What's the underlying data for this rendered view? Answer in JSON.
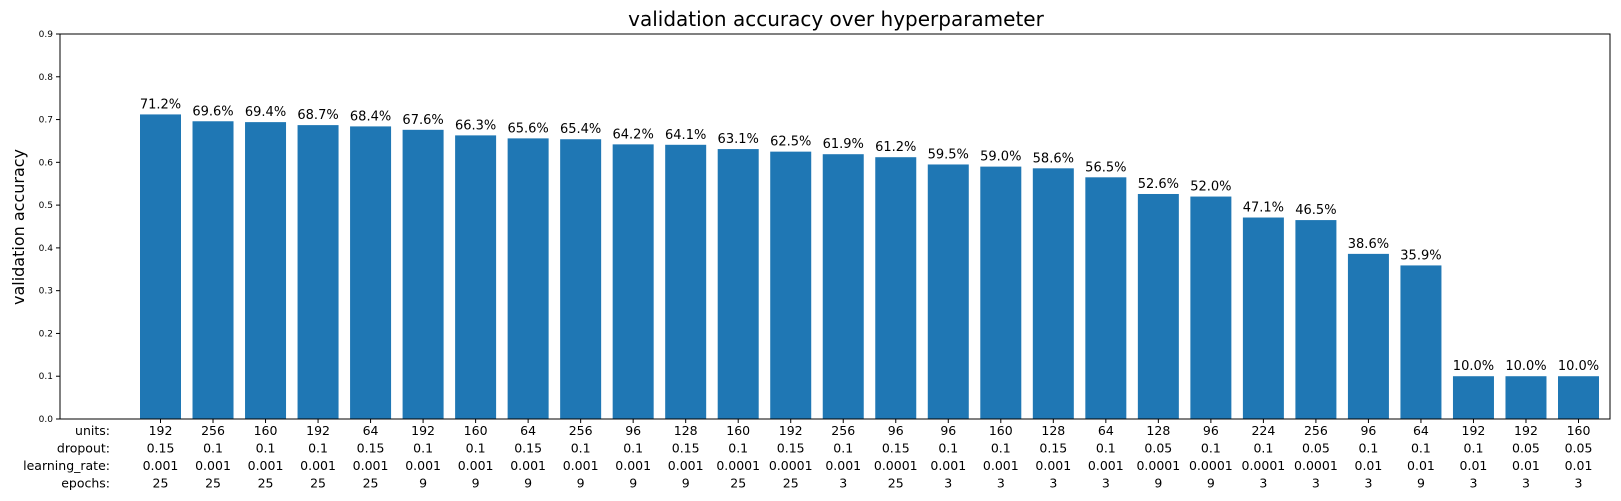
{
  "chart_data": {
    "type": "bar",
    "title": "validation accuracy over hyperparameter",
    "xlabel": "",
    "ylabel": "validation accuracy",
    "ylim": [
      0,
      0.9
    ],
    "yticks": [
      "0.0",
      "0.1",
      "0.2",
      "0.3",
      "0.4",
      "0.5",
      "0.6",
      "0.7",
      "0.8",
      "0.9"
    ],
    "grid": false,
    "bar_color": "#1f77b4",
    "row_headers": [
      "units:",
      "dropout:",
      "learning_rate:",
      "epochs:"
    ],
    "categories": [
      [
        "192",
        "0.15",
        "0.001",
        "25"
      ],
      [
        "256",
        "0.1",
        "0.001",
        "25"
      ],
      [
        "160",
        "0.1",
        "0.001",
        "25"
      ],
      [
        "192",
        "0.1",
        "0.001",
        "25"
      ],
      [
        "64",
        "0.15",
        "0.001",
        "25"
      ],
      [
        "192",
        "0.1",
        "0.001",
        "9"
      ],
      [
        "160",
        "0.1",
        "0.001",
        "9"
      ],
      [
        "64",
        "0.15",
        "0.001",
        "9"
      ],
      [
        "256",
        "0.1",
        "0.001",
        "9"
      ],
      [
        "96",
        "0.1",
        "0.001",
        "9"
      ],
      [
        "128",
        "0.15",
        "0.001",
        "9"
      ],
      [
        "160",
        "0.1",
        "0.0001",
        "25"
      ],
      [
        "192",
        "0.15",
        "0.0001",
        "25"
      ],
      [
        "256",
        "0.1",
        "0.001",
        "3"
      ],
      [
        "96",
        "0.15",
        "0.0001",
        "25"
      ],
      [
        "96",
        "0.1",
        "0.001",
        "3"
      ],
      [
        "160",
        "0.1",
        "0.001",
        "3"
      ],
      [
        "128",
        "0.15",
        "0.001",
        "3"
      ],
      [
        "64",
        "0.1",
        "0.001",
        "3"
      ],
      [
        "128",
        "0.05",
        "0.0001",
        "9"
      ],
      [
        "96",
        "0.1",
        "0.0001",
        "9"
      ],
      [
        "224",
        "0.1",
        "0.0001",
        "3"
      ],
      [
        "256",
        "0.05",
        "0.0001",
        "3"
      ],
      [
        "96",
        "0.1",
        "0.01",
        "3"
      ],
      [
        "64",
        "0.1",
        "0.01",
        "9"
      ],
      [
        "192",
        "0.1",
        "0.01",
        "3"
      ],
      [
        "192",
        "0.05",
        "0.01",
        "3"
      ],
      [
        "160",
        "0.05",
        "0.01",
        "3"
      ]
    ],
    "values": [
      0.712,
      0.696,
      0.694,
      0.687,
      0.684,
      0.676,
      0.663,
      0.656,
      0.654,
      0.642,
      0.641,
      0.631,
      0.625,
      0.619,
      0.612,
      0.595,
      0.59,
      0.586,
      0.565,
      0.526,
      0.52,
      0.471,
      0.465,
      0.386,
      0.359,
      0.1,
      0.1,
      0.1
    ],
    "labels": [
      "71.2%",
      "69.6%",
      "69.4%",
      "68.7%",
      "68.4%",
      "67.6%",
      "66.3%",
      "65.6%",
      "65.4%",
      "64.2%",
      "64.1%",
      "63.1%",
      "62.5%",
      "61.9%",
      "61.2%",
      "59.5%",
      "59.0%",
      "58.6%",
      "56.5%",
      "52.6%",
      "52.0%",
      "47.1%",
      "46.5%",
      "38.6%",
      "35.9%",
      "10.0%",
      "10.0%",
      "10.0%"
    ]
  }
}
